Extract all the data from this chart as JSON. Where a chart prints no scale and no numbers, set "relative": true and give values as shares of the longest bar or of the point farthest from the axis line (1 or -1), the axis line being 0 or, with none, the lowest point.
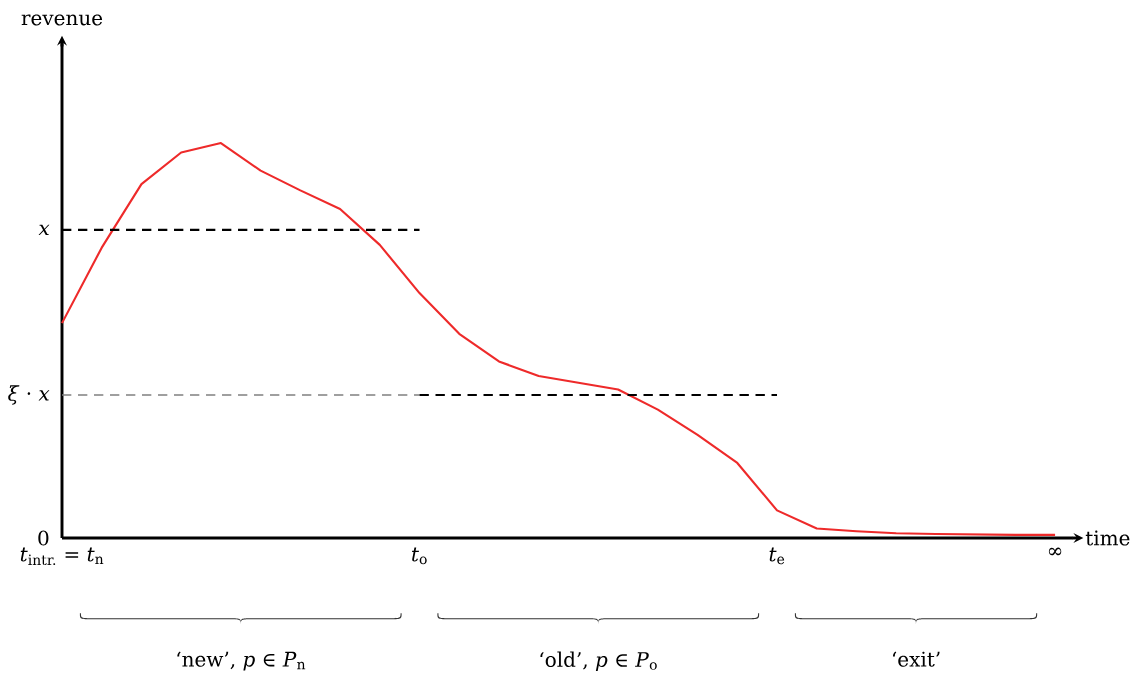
{
  "chart_data": {
    "type": "line",
    "relative": true,
    "xlabel": "time",
    "categories": [
      "*t*$_{intr.}$ = *t*$_{n}$",
      null,
      null,
      null,
      null,
      null,
      null,
      null,
      null,
      "*t*$_{o}$",
      null,
      null,
      null,
      null,
      null,
      null,
      null,
      null,
      "*t*$_{e}$",
      null,
      null,
      null,
      null,
      null,
      null,
      "∞"
    ],
    "series": [
      {
        "color": "#ee2a2a",
        "line_style": "solid",
        "values": [
          0.544,
          0.735,
          0.896,
          0.976,
          1.0,
          0.93,
          0.88,
          0.833,
          0.742,
          0.62,
          0.517,
          0.447,
          0.41,
          0.393,
          0.376,
          0.325,
          0.261,
          0.19,
          0.07,
          0.024,
          0.017,
          0.012,
          0.01,
          0.009,
          0.008,
          0.008
        ]
      },
      {
        "name": "*x*",
        "color": "#000000",
        "line_style": "dashed",
        "values": [
          0.78,
          0.78,
          0.78,
          0.78,
          0.78,
          0.78,
          0.78,
          0.78,
          0.78,
          0.78,
          null,
          null,
          null,
          null,
          null,
          null,
          null,
          null,
          null,
          null,
          null,
          null,
          null,
          null,
          null,
          null
        ]
      },
      {
        "name": "*ξ* · *x*",
        "color": "#808080",
        "line_style": "dashed",
        "values": [
          0.362,
          0.362,
          0.362,
          0.362,
          0.362,
          0.362,
          0.362,
          0.362,
          0.362,
          0.362,
          null,
          null,
          null,
          null,
          null,
          null,
          null,
          null,
          null,
          null,
          null,
          null,
          null,
          null,
          null,
          null
        ]
      },
      {
        "color": "#000000",
        "line_style": "dashed",
        "values": [
          null,
          null,
          null,
          null,
          null,
          null,
          null,
          null,
          null,
          0.362,
          0.362,
          0.362,
          0.362,
          0.362,
          0.362,
          0.362,
          0.362,
          0.362,
          0.362,
          null,
          null,
          null,
          null,
          null,
          null,
          null
        ]
      }
    ],
    "annotations": [
      "revenue",
      "0",
      "‘new’, *p* ∈ *P*$_{n}$",
      "‘old’, *p* ∈ *P*$_{o}$",
      "‘exit’"
    ]
  }
}
